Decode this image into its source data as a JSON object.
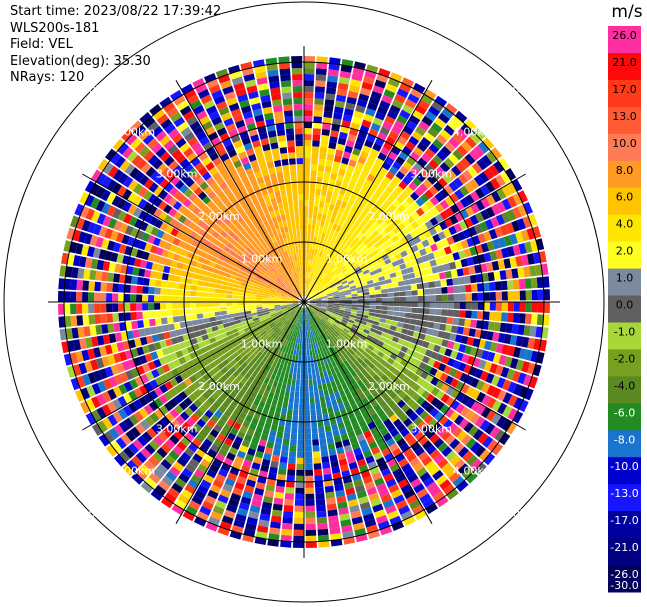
{
  "header": {
    "start_time": "Start time: 2023/08/22 17:39:42",
    "instrument": "WLS200s-181",
    "field": "Field: VEL",
    "elevation": "Elevation(deg): 35.30",
    "nrays": "NRays: 120"
  },
  "colorbar": {
    "unit": "m/s",
    "labels": [
      "26.0",
      "21.0",
      "17.0",
      "13.0",
      "10.0",
      "8.0",
      "6.0",
      "4.0",
      "2.0",
      "1.0",
      "0.0",
      "-1.0",
      "-2.0",
      "-4.0",
      "-6.0",
      "-8.0",
      "-10.0",
      "-13.0",
      "-17.0",
      "-21.0",
      "-26.0",
      "-30.0"
    ],
    "colors": [
      "#ff2ea0",
      "#ff0a0a",
      "#ff3a1a",
      "#ff5a33",
      "#ff7b55",
      "#ff9a22",
      "#ffc400",
      "#ffe600",
      "#ffff22",
      "#7c8aa0",
      "#606060",
      "#a8d838",
      "#78a020",
      "#5a8a20",
      "#228b22",
      "#1874cd",
      "#0000cd",
      "#1515ff",
      "#0000a0",
      "#000080",
      "#00005a"
    ]
  },
  "chart_data": {
    "type": "heatmap",
    "projection": "PPI (plan position indicator)",
    "rays": 120,
    "range_rings_km": [
      1.0,
      2.0,
      3.0,
      4.0,
      5.0
    ],
    "range_labels": [
      "1.00km",
      "2.00km",
      "3.00km",
      "4.00km",
      "5.00km"
    ],
    "azimuth_sectors": [
      {
        "azimuth_deg": 0,
        "velocity_ms": 4.5
      },
      {
        "azimuth_deg": 30,
        "velocity_ms": 3.0
      },
      {
        "azimuth_deg": 60,
        "velocity_ms": 1.5
      },
      {
        "azimuth_deg": 90,
        "velocity_ms": 0.0
      },
      {
        "azimuth_deg": 120,
        "velocity_ms": -1.5
      },
      {
        "azimuth_deg": 150,
        "velocity_ms": -7.0
      },
      {
        "azimuth_deg": 180,
        "velocity_ms": -9.0
      },
      {
        "azimuth_deg": 210,
        "velocity_ms": -5.0
      },
      {
        "azimuth_deg": 240,
        "velocity_ms": -3.0
      },
      {
        "azimuth_deg": 270,
        "velocity_ms": 3.0
      },
      {
        "azimuth_deg": 300,
        "velocity_ms": 8.0
      },
      {
        "azimuth_deg": 330,
        "velocity_ms": 7.0
      }
    ],
    "valid_range_km": 2.5,
    "max_range_km": 4.1
  }
}
